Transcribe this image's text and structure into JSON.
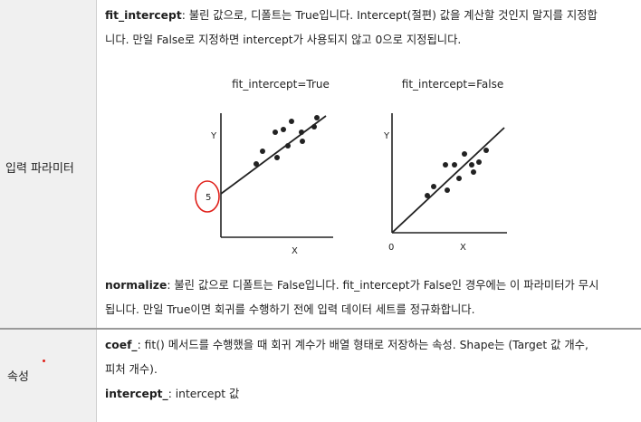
{
  "params_label": "입력 파라미터",
  "attrs_label": "속성",
  "fit_intercept": {
    "term": "fit_intercept",
    "text_line1": ": 불린 값으로, 디폴트는 True입니다. Intercept(절편) 값을 계산할 것인지 말지를 지정합",
    "text_line2": "니다. 만일 False로 지정하면 intercept가 사용되지 않고 0으로 지정됩니다."
  },
  "normalize": {
    "term": "normalize",
    "text_line1": ": 불린 값으로 디폴트는 False입니다. fit_intercept가 False인 경우에는 이 파라미터가 무시",
    "text_line2": "됩니다. 만일 True이면 회귀를 수행하기 전에 입력 데이터 세트를 정규화합니다."
  },
  "coef": {
    "term": "coef_",
    "text_line1": ": fit() 메서드를 수행했을 때 회귀 계수가 배열 형태로 저장하는 속성. Shape는 (Target 값 개수,",
    "text_line2": "피처 개수)."
  },
  "intercept": {
    "term": "intercept_",
    "text": ": intercept 값"
  },
  "figure_left": {
    "title": "fit_intercept=True",
    "y_label": "Y",
    "x_label": "X",
    "intercept_label": "5"
  },
  "figure_right": {
    "title": "fit_intercept=False",
    "y_label": "Y",
    "x_label": "X",
    "origin_label": "0"
  },
  "colors": {
    "label_bg": "#f0f0f0",
    "annotation_red": "#e0201a",
    "ink": "#1e1e1e"
  }
}
